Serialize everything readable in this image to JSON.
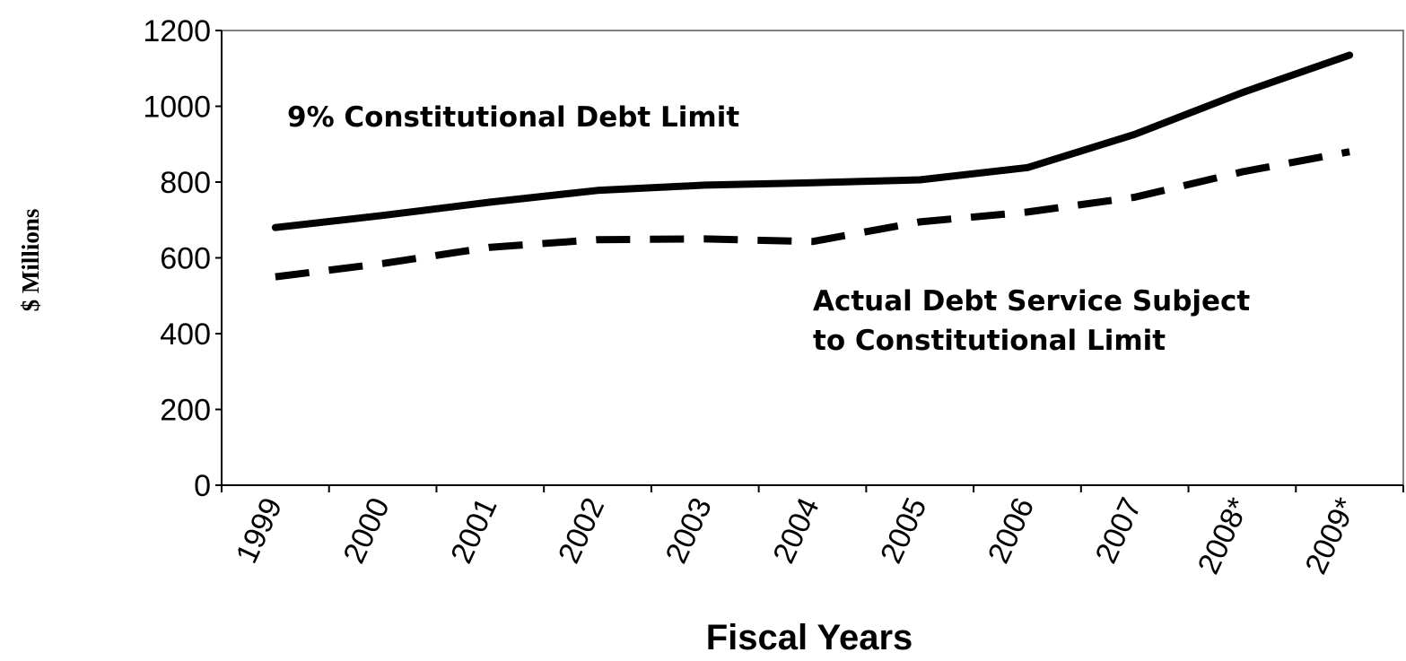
{
  "chart_data": {
    "type": "line",
    "title": "",
    "xlabel": "Fiscal Years",
    "ylabel": "$ Millions",
    "ylim": [
      0,
      1200
    ],
    "yticks": [
      "0",
      "200",
      "400",
      "600",
      "800",
      "1000",
      "1200"
    ],
    "categories": [
      "1999",
      "2000",
      "2001",
      "2002",
      "2003",
      "2004",
      "2005",
      "2006",
      "2007",
      "2008*",
      "2009*"
    ],
    "grid": false,
    "legend": "none",
    "series": [
      {
        "name": "9% Constitutional Debt Limit",
        "style": "solid",
        "color": "#000000",
        "values": [
          680,
          712,
          747,
          778,
          792,
          798,
          806,
          838,
          926,
          1036,
          1135
        ]
      },
      {
        "name": "Actual Debt Service Subject to Constitutional Limit",
        "style": "dashed",
        "color": "#000000",
        "values": [
          550,
          585,
          628,
          648,
          650,
          643,
          695,
          721,
          760,
          827,
          880
        ]
      }
    ],
    "annotations": [
      {
        "lines": [
          "9% Constitutional Debt Limit"
        ]
      },
      {
        "lines": [
          "Actual Debt Service Subject",
          "to Constitutional Limit"
        ]
      }
    ]
  }
}
